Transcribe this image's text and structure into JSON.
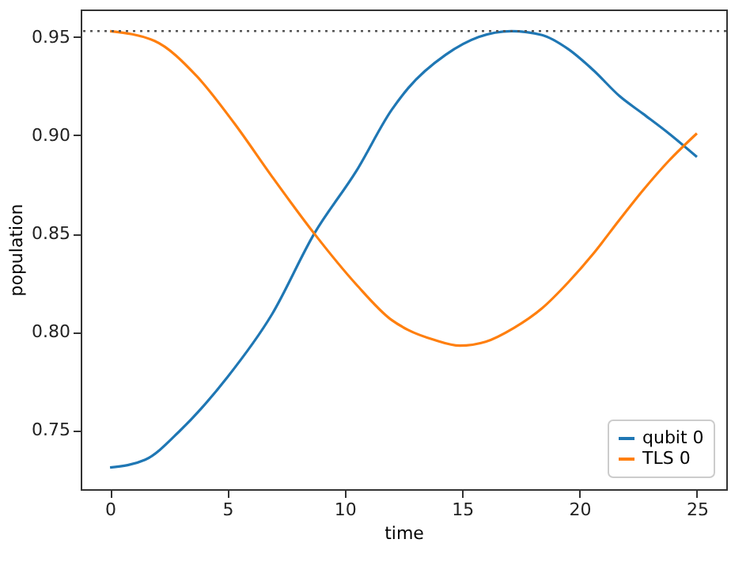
{
  "chart_data": {
    "type": "line",
    "xlabel": "time",
    "ylabel": "population",
    "xlim": [
      -1.25,
      26.25
    ],
    "ylim": [
      0.72,
      0.964
    ],
    "xticks": [
      0,
      5,
      10,
      15,
      20,
      25
    ],
    "yticks": [
      0.75,
      {
        "value": 0.8,
        "label": "0.80"
      },
      0.85,
      {
        "value": 0.9,
        "label": "0.90"
      },
      0.95
    ],
    "grid": false,
    "legend": "bottom right",
    "line_style": "solid",
    "marker": "none",
    "series": [
      {
        "name": "qubit 0",
        "color": "#1f77b4",
        "x": [
          0,
          1.5,
          3,
          5,
          6.9,
          8.7,
          10.5,
          12,
          12.7,
          14.3,
          15.7,
          17.1,
          18.4,
          19.5,
          20.6,
          21.7,
          22.7,
          23.8,
          25
        ],
        "values": [
          0.731,
          0.735,
          0.75,
          0.777,
          0.809,
          0.85,
          0.882,
          0.913,
          0.924,
          0.941,
          0.95,
          0.953,
          0.951,
          0.944,
          0.933,
          0.92,
          0.911,
          0.901,
          0.889
        ]
      },
      {
        "name": "TLS 0",
        "color": "#ff7f0e",
        "x": [
          0,
          1.9,
          3.7,
          5.3,
          6.9,
          8.7,
          10.5,
          12,
          12.7,
          13.8,
          14.9,
          16,
          17.2,
          18.4,
          19.5,
          20.6,
          21.7,
          22.7,
          23.8,
          25
        ],
        "values": [
          0.953,
          0.948,
          0.93,
          0.906,
          0.879,
          0.85,
          0.824,
          0.806,
          0.801,
          0.796,
          0.793,
          0.795,
          0.802,
          0.812,
          0.825,
          0.84,
          0.857,
          0.872,
          0.887,
          0.901
        ]
      }
    ],
    "ref_lines": [
      {
        "axis": "y",
        "value": 0.953,
        "color": "#555555",
        "line_style": "dotted"
      }
    ]
  }
}
